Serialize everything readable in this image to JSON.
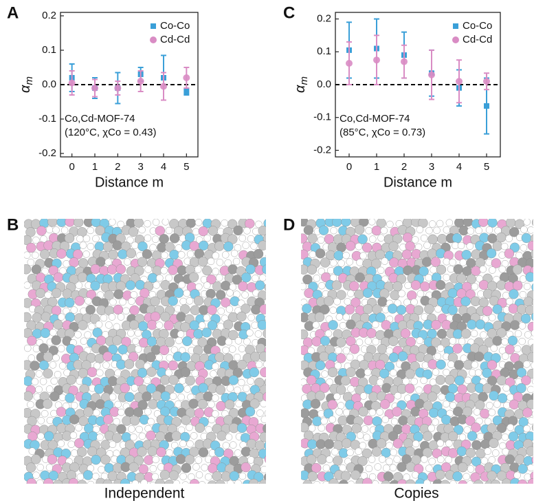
{
  "chart_data": [
    {
      "type": "errorbar",
      "panel_label": "A",
      "x": [
        0,
        1,
        2,
        3,
        4,
        5
      ],
      "series": [
        {
          "name": "Co-Co",
          "color": "#3a9fd8",
          "marker": "square",
          "values": [
            0.02,
            -0.01,
            -0.01,
            0.03,
            0.02,
            -0.02
          ],
          "errors": [
            0.04,
            0.03,
            0.045,
            0.02,
            0.065,
            0.01
          ]
        },
        {
          "name": "Cd-Cd",
          "color": "#d98cc4",
          "marker": "circle",
          "values": [
            0.005,
            -0.01,
            -0.01,
            0.01,
            -0.005,
            0.02
          ],
          "errors": [
            0.035,
            0.025,
            0.02,
            0.03,
            0.04,
            0.03
          ]
        }
      ],
      "xlim": [
        -0.5,
        5.5
      ],
      "xticks": [
        0,
        1,
        2,
        3,
        4,
        5
      ],
      "ylim": [
        -0.21,
        0.21
      ],
      "yticks": [
        -0.2,
        -0.1,
        {
          "value": 0,
          "label": "0.0"
        },
        0.1,
        0.2
      ],
      "reference_line": 0,
      "x_label": "Distance m",
      "y_label": {
        "symbol": "α",
        "subscript": "m"
      },
      "annotation": [
        "Co,Cd-MOF-74",
        "(120°C, χCo = 0.43)"
      ],
      "legend": "upper right"
    },
    {
      "type": "errorbar",
      "panel_label": "C",
      "x": [
        0,
        1,
        2,
        3,
        4,
        5
      ],
      "series": [
        {
          "name": "Co-Co",
          "color": "#3a9fd8",
          "marker": "square",
          "values": [
            0.105,
            0.11,
            0.09,
            0.035,
            -0.01,
            -0.065
          ],
          "errors": [
            0.085,
            0.09,
            0.07,
            0.07,
            0.055,
            0.085
          ]
        },
        {
          "name": "Cd-Cd",
          "color": "#d98cc4",
          "marker": "circle",
          "values": [
            0.065,
            0.075,
            0.07,
            0.03,
            0.01,
            0.01
          ],
          "errors": [
            0.065,
            0.075,
            0.05,
            0.075,
            0.065,
            0.025
          ]
        }
      ],
      "xlim": [
        -0.5,
        5.5
      ],
      "xticks": [
        0,
        1,
        2,
        3,
        4,
        5
      ],
      "ylim": [
        -0.22,
        0.22
      ],
      "yticks": [
        -0.2,
        -0.1,
        {
          "value": 0,
          "label": "0.0"
        },
        0.1,
        0.2
      ],
      "reference_line": 0,
      "x_label": "Distance m",
      "y_label": {
        "symbol": "α",
        "subscript": "m"
      },
      "annotation": [
        "Co,Cd-MOF-74",
        "(85°C, χCo = 0.73)"
      ],
      "legend": "upper right"
    }
  ],
  "images": [
    {
      "label": "B",
      "caption": "Independent"
    },
    {
      "label": "D",
      "caption": "Copies"
    }
  ]
}
